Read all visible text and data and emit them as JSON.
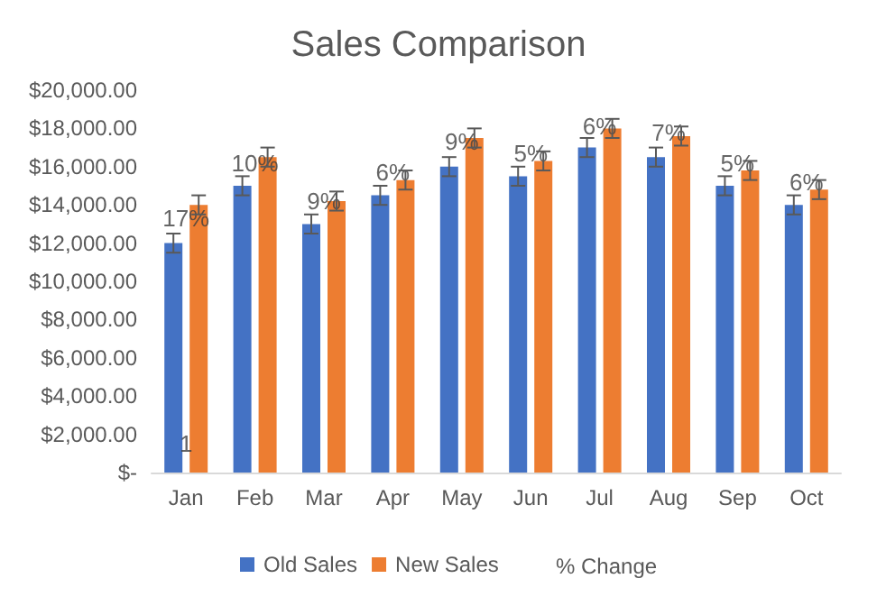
{
  "chart_data": {
    "type": "bar",
    "title": "Sales Comparison",
    "categories": [
      "Jan",
      "Feb",
      "Mar",
      "Apr",
      "May",
      "Jun",
      "Jul",
      "Aug",
      "Sep",
      "Oct"
    ],
    "series": [
      {
        "name": "Old Sales",
        "color": "#4472c4",
        "values": [
          12000,
          15000,
          13000,
          14500,
          16000,
          15500,
          17000,
          16500,
          15000,
          14000
        ],
        "errors": [
          500,
          500,
          500,
          500,
          500,
          500,
          500,
          500,
          500,
          500
        ]
      },
      {
        "name": "New Sales",
        "color": "#ed7d31",
        "values": [
          14000,
          16500,
          14200,
          15300,
          17500,
          16300,
          18000,
          17600,
          15800,
          14800
        ],
        "errors": [
          500,
          500,
          500,
          500,
          500,
          500,
          500,
          500,
          500,
          500
        ]
      }
    ],
    "ylim": [
      0,
      20000
    ],
    "yticks": [
      {
        "value": 0,
        "label": "$-"
      },
      {
        "value": 2000,
        "label": "$2,000.00"
      },
      {
        "value": 4000,
        "label": "$4,000.00"
      },
      {
        "value": 6000,
        "label": "$6,000.00"
      },
      {
        "value": 8000,
        "label": "$8,000.00"
      },
      {
        "value": 10000,
        "label": "$10,000.00"
      },
      {
        "value": 12000,
        "label": "$12,000.00"
      },
      {
        "value": 14000,
        "label": "$14,000.00"
      },
      {
        "value": 16000,
        "label": "$16,000.00"
      },
      {
        "value": 18000,
        "label": "$18,000.00"
      },
      {
        "value": 20000,
        "label": "$20,000.00"
      }
    ],
    "annotations": [
      {
        "text": "17%",
        "x": "Jan",
        "y": 13300
      },
      {
        "text": "10%",
        "x": "Feb",
        "y": 16200
      },
      {
        "text": "9%",
        "x": "Mar",
        "y": 14200
      },
      {
        "text": "6%",
        "x": "Apr",
        "y": 15700
      },
      {
        "text": "9%",
        "x": "May",
        "y": 17300
      },
      {
        "text": "5%",
        "x": "Jun",
        "y": 16700
      },
      {
        "text": "6%",
        "x": "Jul",
        "y": 18100
      },
      {
        "text": "7%",
        "x": "Aug",
        "y": 17800
      },
      {
        "text": "5%",
        "x": "Sep",
        "y": 16200
      },
      {
        "text": "6%",
        "x": "Oct",
        "y": 15200
      },
      {
        "text": "1",
        "x": "Jan",
        "y": 1500
      },
      "% Change"
    ],
    "grid": false,
    "legend": "bottom"
  }
}
